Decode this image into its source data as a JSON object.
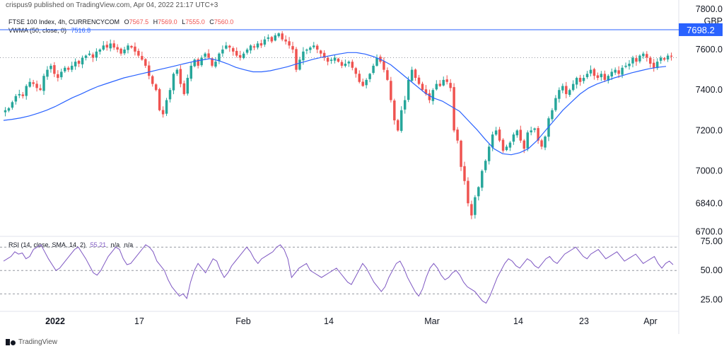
{
  "header": {
    "publisher": "crispus9 published on TradingView.com, Apr 04, 2022 21:17 UTC+3"
  },
  "legend": {
    "symbol": "FTSE 100 Index, 4h, CURRENCYCOM",
    "o_label": "O",
    "o_value": "7567.5",
    "h_label": "H",
    "h_value": "7569.0",
    "l_label": "L",
    "l_value": "7555.0",
    "c_label": "C",
    "c_value": "7560.0",
    "vwma_label": "VWMA (50, close, 0)",
    "vwma_value": "7516.8",
    "rsi_label": "RSI (14, close, SMA, 14, 2)",
    "rsi_value": "55.21",
    "rsi_na1": "n/a",
    "rsi_na2": "n/a"
  },
  "price_axis": {
    "currency": "GBP",
    "ticks": [
      "7800.0",
      "7600.0",
      "7400.0",
      "7200.0",
      "7000.0",
      "6840.0",
      "6700.0"
    ],
    "marker_value": "7698.2"
  },
  "rsi_axis": {
    "ticks": [
      "75.00",
      "50.00",
      "25.00"
    ]
  },
  "x_axis": {
    "ticks": [
      "2022",
      "17",
      "Feb",
      "14",
      "Mar",
      "14",
      "23",
      "Apr"
    ]
  },
  "footer": {
    "brand": "TradingView"
  },
  "colors": {
    "up": "#26a69a",
    "down": "#ef5350",
    "vwma": "#2962ff",
    "rsi": "#7e57c2",
    "marker_bg": "#2962ff",
    "grid": "#e0e3eb"
  },
  "chart_data": [
    {
      "type": "candlestick",
      "title": "FTSE 100 Index, 4h, CURRENCYCOM",
      "ylabel": "GBP",
      "ylim": [
        6680,
        7810
      ],
      "price_ticks": [
        7800,
        7600,
        7400,
        7200,
        7000,
        6840,
        6700
      ],
      "horizontal_line": 7698.2,
      "current_price": 7560.0,
      "x_ticks": [
        "2022",
        "17",
        "Feb",
        "14",
        "Mar",
        "14",
        "23",
        "Apr"
      ],
      "close_path": [
        7300,
        7310,
        7340,
        7370,
        7380,
        7370,
        7420,
        7440,
        7430,
        7410,
        7400,
        7470,
        7500,
        7520,
        7480,
        7460,
        7490,
        7510,
        7500,
        7520,
        7540,
        7530,
        7560,
        7570,
        7580,
        7560,
        7590,
        7600,
        7620,
        7610,
        7630,
        7610,
        7600,
        7580,
        7600,
        7620,
        7610,
        7590,
        7570,
        7550,
        7520,
        7470,
        7430,
        7400,
        7300,
        7280,
        7350,
        7400,
        7480,
        7500,
        7430,
        7380,
        7460,
        7520,
        7550,
        7520,
        7560,
        7580,
        7560,
        7520,
        7540,
        7580,
        7600,
        7620,
        7610,
        7590,
        7570,
        7560,
        7580,
        7600,
        7620,
        7610,
        7630,
        7620,
        7650,
        7660,
        7640,
        7670,
        7680,
        7650,
        7640,
        7620,
        7600,
        7500,
        7550,
        7590,
        7600,
        7610,
        7620,
        7600,
        7580,
        7560,
        7540,
        7550,
        7560,
        7540,
        7520,
        7530,
        7540,
        7510,
        7480,
        7440,
        7420,
        7450,
        7480,
        7520,
        7560,
        7540,
        7500,
        7450,
        7350,
        7250,
        7200,
        7300,
        7350,
        7450,
        7500,
        7460,
        7430,
        7400,
        7380,
        7350,
        7400,
        7430,
        7420,
        7450,
        7440,
        7410,
        7200,
        7150,
        7020,
        6950,
        6840,
        6780,
        6870,
        6920,
        7000,
        7050,
        7120,
        7180,
        7200,
        7150,
        7100,
        7120,
        7140,
        7180,
        7200,
        7150,
        7110,
        7190,
        7200,
        7210,
        7150,
        7120,
        7170,
        7260,
        7300,
        7360,
        7400,
        7420,
        7380,
        7400,
        7430,
        7460,
        7440,
        7460,
        7480,
        7500,
        7470,
        7460,
        7480,
        7450,
        7470,
        7490,
        7500,
        7480,
        7510,
        7520,
        7530,
        7560,
        7540,
        7570,
        7580,
        7560,
        7530,
        7510,
        7540,
        7560,
        7550,
        7570,
        7565
      ],
      "vwma_path": [
        7250,
        7255,
        7262,
        7272,
        7285,
        7300,
        7318,
        7340,
        7362,
        7380,
        7400,
        7418,
        7432,
        7446,
        7460,
        7470,
        7480,
        7490,
        7500,
        7510,
        7520,
        7530,
        7540,
        7548,
        7555,
        7545,
        7530,
        7512,
        7500,
        7490,
        7490,
        7495,
        7505,
        7515,
        7528,
        7540,
        7552,
        7562,
        7570,
        7578,
        7585,
        7585,
        7578,
        7565,
        7548,
        7525,
        7490,
        7455,
        7420,
        7385,
        7360,
        7345,
        7320,
        7295,
        7250,
        7205,
        7155,
        7110,
        7085,
        7080,
        7090,
        7110,
        7150,
        7200,
        7250,
        7300,
        7340,
        7380,
        7410,
        7430,
        7445,
        7460,
        7472,
        7485,
        7495,
        7505,
        7512,
        7517
      ]
    },
    {
      "type": "line",
      "title": "RSI (14, close, SMA, 14, 2)",
      "ylim": [
        15,
        78
      ],
      "levels": [
        70,
        50,
        30
      ],
      "y_ticks": [
        75,
        50,
        25
      ],
      "last_value": 55.21,
      "values": [
        58,
        60,
        62,
        66,
        64,
        65,
        60,
        62,
        68,
        70,
        72,
        66,
        60,
        55,
        50,
        52,
        56,
        60,
        64,
        68,
        70,
        65,
        60,
        54,
        48,
        46,
        50,
        56,
        62,
        66,
        70,
        68,
        60,
        55,
        56,
        60,
        64,
        68,
        72,
        70,
        66,
        58,
        54,
        50,
        42,
        36,
        32,
        28,
        30,
        26,
        40,
        50,
        56,
        52,
        48,
        54,
        60,
        58,
        50,
        44,
        48,
        54,
        58,
        62,
        66,
        70,
        66,
        60,
        56,
        60,
        62,
        64,
        66,
        70,
        72,
        68,
        60,
        44,
        48,
        52,
        54,
        56,
        50,
        48,
        46,
        44,
        46,
        48,
        50,
        52,
        48,
        44,
        40,
        38,
        44,
        50,
        56,
        52,
        46,
        40,
        36,
        32,
        36,
        44,
        50,
        56,
        58,
        52,
        44,
        38,
        32,
        28,
        34,
        44,
        52,
        56,
        52,
        46,
        42,
        44,
        48,
        50,
        46,
        40,
        36,
        34,
        32,
        28,
        24,
        22,
        28,
        36,
        44,
        50,
        56,
        60,
        58,
        54,
        52,
        56,
        60,
        58,
        54,
        52,
        56,
        60,
        62,
        58,
        56,
        60,
        64,
        66,
        68,
        70,
        66,
        62,
        60,
        64,
        66,
        68,
        64,
        60,
        62,
        64,
        66,
        62,
        58,
        60,
        62,
        64,
        60,
        56,
        58,
        60,
        62,
        56,
        52,
        56,
        58,
        55
      ]
    }
  ]
}
